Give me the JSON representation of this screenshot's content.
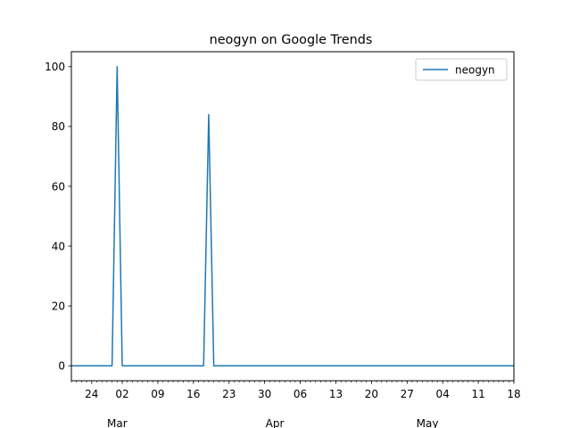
{
  "chart_data": {
    "type": "line",
    "title": "neogyn on Google Trends",
    "xlabel": "",
    "ylabel": "",
    "x_range": [
      "2021-02-20",
      "2021-05-18"
    ],
    "ylim": [
      -5,
      105
    ],
    "yticks": [
      0,
      20,
      40,
      60,
      80,
      100
    ],
    "grid": false,
    "legend": {
      "placement": "top-right"
    },
    "x_ticks_major": [
      {
        "date": "2021-02-24",
        "label": "24"
      },
      {
        "date": "2021-03-02",
        "label": "02"
      },
      {
        "date": "2021-03-09",
        "label": "09"
      },
      {
        "date": "2021-03-16",
        "label": "16"
      },
      {
        "date": "2021-03-23",
        "label": "23"
      },
      {
        "date": "2021-03-30",
        "label": "30"
      },
      {
        "date": "2021-04-06",
        "label": "06"
      },
      {
        "date": "2021-04-13",
        "label": "13"
      },
      {
        "date": "2021-04-20",
        "label": "20"
      },
      {
        "date": "2021-04-27",
        "label": "27"
      },
      {
        "date": "2021-05-04",
        "label": "04"
      },
      {
        "date": "2021-05-11",
        "label": "11"
      },
      {
        "date": "2021-05-18",
        "label": "18"
      }
    ],
    "x_ticks_month": [
      {
        "date": "2021-03-01",
        "label": "Mar"
      },
      {
        "date": "2021-04-01",
        "label": "Apr"
      },
      {
        "date": "2021-05-01",
        "label": "May"
      }
    ],
    "series": [
      {
        "name": "neogyn",
        "color": "#1f77b4",
        "points": [
          [
            "2021-02-20",
            0
          ],
          [
            "2021-02-28",
            0
          ],
          [
            "2021-03-01",
            100
          ],
          [
            "2021-03-02",
            0
          ],
          [
            "2021-03-18",
            0
          ],
          [
            "2021-03-19",
            84
          ],
          [
            "2021-03-20",
            0
          ],
          [
            "2021-05-18",
            0
          ]
        ]
      }
    ]
  }
}
